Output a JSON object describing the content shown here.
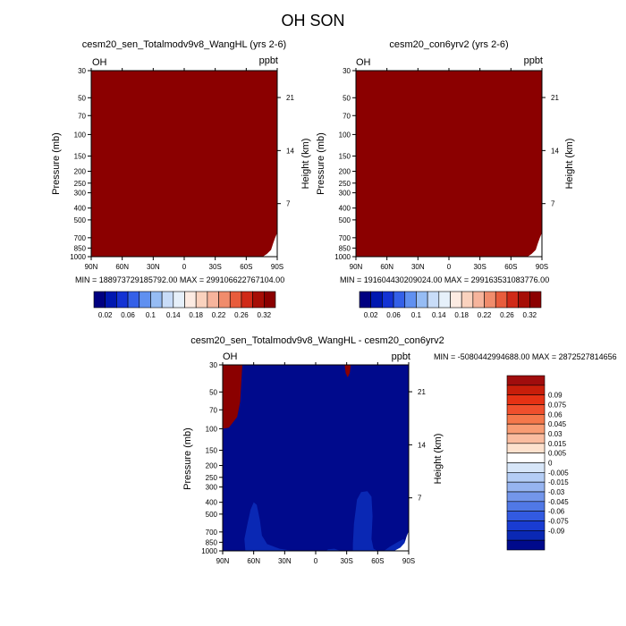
{
  "figure": {
    "title": "OH SON"
  },
  "colors": {
    "dark_red": "#8b0000",
    "navy": "#000a8c",
    "blue_patch": "#0a28b4",
    "white": "#ffffff"
  },
  "chart_data": [
    {
      "type": "heatmap",
      "title": "cesm20_sen_Totalmodv9v8_WangHL (yrs 2-6)",
      "left_string": "OH",
      "right_string": "ppbt",
      "xlabel": "",
      "ylabel": "Pressure (mb)",
      "y2label": "Height (km)",
      "x_ticks": [
        "90N",
        "60N",
        "30N",
        "0",
        "30S",
        "60S",
        "90S"
      ],
      "x_values": [
        90,
        60,
        30,
        0,
        -30,
        -60,
        -90
      ],
      "y_ticks": [
        30,
        50,
        70,
        100,
        150,
        200,
        250,
        300,
        400,
        500,
        700,
        850,
        1000
      ],
      "y_scale": "log",
      "ylim": [
        1000,
        30
      ],
      "y2_ticks": [
        7,
        14,
        21
      ],
      "stats_text": "MIN = 188973729185792.00  MAX = 299106622767104.00",
      "field_description": "values exceed top color level almost everywhere (dark red), small white region near 90S at 700-1000 mb",
      "colorbar": {
        "labels": [
          "0.02",
          "0.06",
          "0.1",
          "0.14",
          "0.18",
          "0.22",
          "0.26",
          "0.32"
        ],
        "colors": [
          "#000080",
          "#0018b0",
          "#1433d4",
          "#3460e8",
          "#6090f0",
          "#96bcf4",
          "#c8dcf8",
          "#e6f0fa",
          "#fcebe2",
          "#fad2be",
          "#f6b49c",
          "#f08c6c",
          "#e85c3c",
          "#d02a18",
          "#a60e06",
          "#8b0000"
        ]
      }
    },
    {
      "type": "heatmap",
      "title": "cesm20_con6yrv2 (yrs 2-6)",
      "left_string": "OH",
      "right_string": "ppbt",
      "xlabel": "",
      "ylabel": "Pressure (mb)",
      "y2label": "Height (km)",
      "x_ticks": [
        "90N",
        "60N",
        "30N",
        "0",
        "30S",
        "60S",
        "90S"
      ],
      "x_values": [
        90,
        60,
        30,
        0,
        -30,
        -60,
        -90
      ],
      "y_ticks": [
        30,
        50,
        70,
        100,
        150,
        200,
        250,
        300,
        400,
        500,
        700,
        850,
        1000
      ],
      "y_scale": "log",
      "ylim": [
        1000,
        30
      ],
      "y2_ticks": [
        7,
        14,
        21
      ],
      "stats_text": "MIN = 191604430209024.00  MAX = 299163531083776.00",
      "field_description": "values exceed top color level almost everywhere (dark red), small white region near 90S at 700-1000 mb",
      "colorbar": {
        "labels": [
          "0.02",
          "0.06",
          "0.1",
          "0.14",
          "0.18",
          "0.22",
          "0.26",
          "0.32"
        ],
        "colors": [
          "#000080",
          "#0018b0",
          "#1433d4",
          "#3460e8",
          "#6090f0",
          "#96bcf4",
          "#c8dcf8",
          "#e6f0fa",
          "#fcebe2",
          "#fad2be",
          "#f6b49c",
          "#f08c6c",
          "#e85c3c",
          "#d02a18",
          "#a60e06",
          "#8b0000"
        ]
      }
    },
    {
      "type": "heatmap",
      "title": "cesm20_sen_Totalmodv9v8_WangHL - cesm20_con6yrv2",
      "left_string": "OH",
      "right_string": "ppbt",
      "xlabel": "",
      "ylabel": "Pressure (mb)",
      "y2label": "Height (km)",
      "x_ticks": [
        "90N",
        "60N",
        "30N",
        "0",
        "30S",
        "60S",
        "90S"
      ],
      "x_values": [
        90,
        60,
        30,
        0,
        -30,
        -60,
        -90
      ],
      "y_ticks": [
        30,
        50,
        70,
        100,
        150,
        200,
        250,
        300,
        400,
        500,
        700,
        850,
        1000
      ],
      "y_scale": "log",
      "ylim": [
        1000,
        30
      ],
      "y2_ticks": [
        7,
        14,
        21
      ],
      "stats_text": "MIN = -5080442994688.00  MAX = 2872527814656",
      "field_description": "mostly below -0.09 (navy); positive above 0.09 (dark red) near 90N-70N above 100 mb and a small patch near 30S at 30 mb; lighter blue patches near 60N and 45S in the lower troposphere; white near 90S surface",
      "colorbar": {
        "labels": [
          "0.09",
          "0.075",
          "0.06",
          "0.045",
          "0.03",
          "0.015",
          "0.005",
          "0",
          "-0.005",
          "-0.015",
          "-0.03",
          "-0.045",
          "-0.06",
          "-0.075",
          "-0.09"
        ],
        "colors": [
          "#a00d0d",
          "#c81e0a",
          "#e63214",
          "#f0502d",
          "#f5784b",
          "#f89c73",
          "#fabc9f",
          "#fde1cd",
          "#ffffff",
          "#d7e6f8",
          "#b4cdf5",
          "#96b4f0",
          "#7396eb",
          "#5078e6",
          "#325ae1",
          "#193cd2",
          "#0a28b4",
          "#000a8c"
        ]
      }
    }
  ]
}
